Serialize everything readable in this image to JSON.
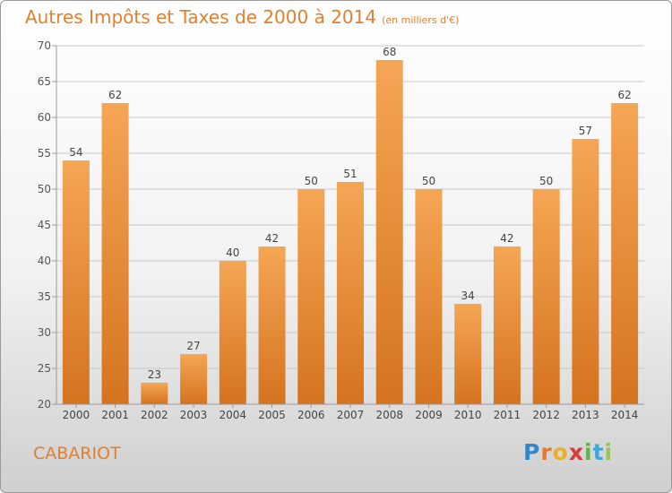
{
  "header": {
    "title": "Autres Impôts et Taxes de 2000 à 2014",
    "unit_note": "(en milliers d'€)"
  },
  "footer": {
    "commune": "CABARIOT",
    "logo_text": "Proxiti"
  },
  "colors": {
    "accent": "#e47f2c",
    "bar_light": "#f5a654",
    "bar_dark": "#d5731f",
    "grid": "#c8c8c8",
    "axis": "#999999"
  },
  "chart_data": {
    "type": "bar",
    "title": "Autres Impôts et Taxes de 2000 à 2014",
    "subtitle": "(en milliers d'€)",
    "xlabel": "",
    "ylabel": "",
    "categories": [
      "2000",
      "2001",
      "2002",
      "2003",
      "2004",
      "2005",
      "2006",
      "2007",
      "2008",
      "2009",
      "2010",
      "2011",
      "2012",
      "2013",
      "2014"
    ],
    "values": [
      54,
      62,
      23,
      27,
      40,
      42,
      50,
      51,
      68,
      50,
      34,
      42,
      50,
      57,
      62
    ],
    "ylim": [
      20,
      70
    ],
    "yticks": [
      20,
      25,
      30,
      35,
      40,
      45,
      50,
      55,
      60,
      65,
      70
    ],
    "grid": true,
    "data_labels": true
  }
}
